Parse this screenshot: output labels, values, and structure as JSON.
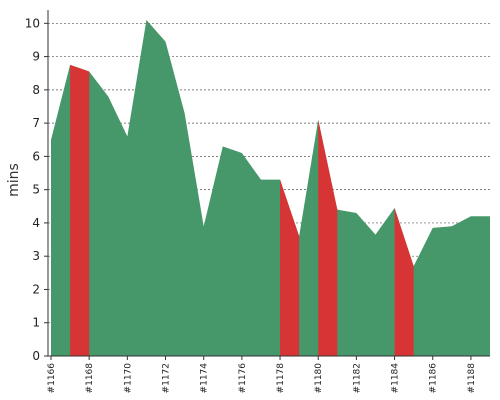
{
  "chart_data": {
    "type": "area",
    "ylabel": "mins",
    "xlabel": "",
    "ylim": [
      0,
      10.4
    ],
    "yticks": [
      "0",
      "1",
      "2",
      "3",
      "4",
      "5",
      "6",
      "7",
      "8",
      "9",
      "10"
    ],
    "grid": true,
    "categories": [
      "#1166",
      "#1167",
      "#1168",
      "#1169",
      "#1170",
      "#1171",
      "#1172",
      "#1173",
      "#1174",
      "#1175",
      "#1176",
      "#1177",
      "#1178",
      "#1179",
      "#1180",
      "#1181",
      "#1182",
      "#1183",
      "#1184",
      "#1185",
      "#1186",
      "#1187",
      "#1188",
      "#1189"
    ],
    "xtick_labels": [
      "#1166",
      "#1168",
      "#1170",
      "#1172",
      "#1174",
      "#1176",
      "#1178",
      "#1180",
      "#1182",
      "#1184",
      "#1186",
      "#1188"
    ],
    "values": [
      6.5,
      8.75,
      8.55,
      7.8,
      6.6,
      10.1,
      9.45,
      7.3,
      3.9,
      6.3,
      6.1,
      5.3,
      5.3,
      3.6,
      7.1,
      4.4,
      4.3,
      3.65,
      4.45,
      2.7,
      3.85,
      3.9,
      4.2,
      4.2
    ],
    "failed_builds": [
      "#1167",
      "#1178",
      "#1180",
      "#1184"
    ],
    "colors": {
      "pass": "#46986b",
      "fail": "#d73535",
      "grid": "#555555",
      "axis": "#333333"
    }
  }
}
